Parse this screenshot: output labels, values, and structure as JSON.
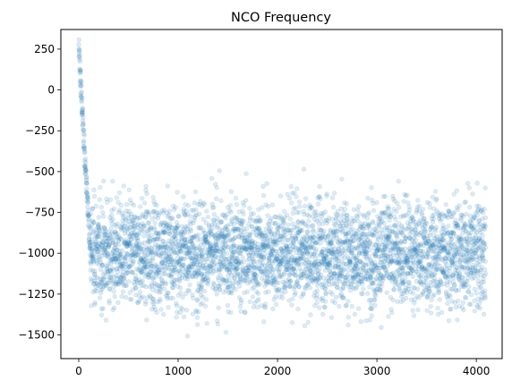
{
  "chart_data": {
    "type": "scatter",
    "title": "NCO Frequency",
    "xlabel": "",
    "ylabel": "",
    "xlim": [
      -180,
      4260
    ],
    "ylim": [
      -1645,
      370
    ],
    "x_ticks": [
      0,
      1000,
      2000,
      3000,
      4000
    ],
    "y_ticks": [
      250,
      0,
      -250,
      -500,
      -750,
      -1000,
      -1250,
      -1500
    ],
    "x_tick_labels": [
      "0",
      "1000",
      "2000",
      "3000",
      "4000"
    ],
    "y_tick_labels": [
      "250",
      "0",
      "−250",
      "−500",
      "−750",
      "−1000",
      "−1250",
      "−1500"
    ],
    "grid": false,
    "marker_color": "#1f77b4",
    "marker_opacity": 0.15,
    "series": [
      {
        "n_points": 4096,
        "x_range": [
          0,
          4095
        ],
        "transient": {
          "start_value": 280,
          "decay_samples": 120,
          "noise_range": [
            -120,
            60
          ]
        },
        "steady_state": {
          "mean": -1000,
          "spread_std": 160,
          "range": [
            -1550,
            -450
          ]
        }
      }
    ]
  }
}
